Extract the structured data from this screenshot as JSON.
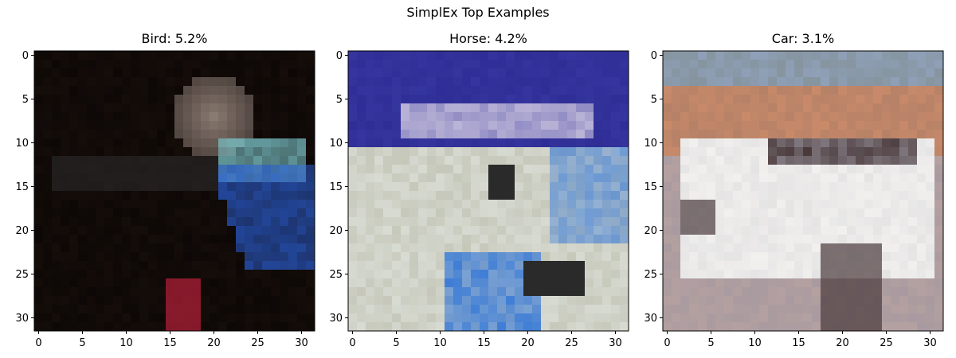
{
  "chart_data": {
    "type": "heatmap",
    "title": "SimplEx Top Examples",
    "panels": [
      {
        "title": "Bird: 5.2%",
        "image_description_colors": [
          "#1a100c",
          "#8a7a72",
          "#7ec9cf",
          "#2a5fd6",
          "#b8203a"
        ],
        "xticks": [
          0,
          5,
          10,
          15,
          20,
          25,
          30
        ],
        "yticks": [
          0,
          5,
          10,
          15,
          20,
          25,
          30
        ],
        "xlim": [
          -0.5,
          31.5
        ],
        "ylim": [
          31.5,
          -0.5
        ]
      },
      {
        "title": "Horse: 4.2%",
        "image_description_colors": [
          "#2f2e96",
          "#b9b3d6",
          "#d8dbd2",
          "#3f7ed6",
          "#2a2a2a"
        ],
        "xticks": [
          0,
          5,
          10,
          15,
          20,
          25,
          30
        ],
        "yticks": [
          0,
          5,
          10,
          15,
          20,
          25,
          30
        ],
        "xlim": [
          -0.5,
          31.5
        ],
        "ylim": [
          31.5,
          -0.5
        ]
      },
      {
        "title": "Car: 3.1%",
        "image_description_colors": [
          "#8fa0b8",
          "#c98a6a",
          "#f2f0ee",
          "#4a3a3c",
          "#a89aa0"
        ],
        "xticks": [
          0,
          5,
          10,
          15,
          20,
          25,
          30
        ],
        "yticks": [
          0,
          5,
          10,
          15,
          20,
          25,
          30
        ],
        "xlim": [
          -0.5,
          31.5
        ],
        "ylim": [
          31.5,
          -0.5
        ]
      }
    ]
  }
}
